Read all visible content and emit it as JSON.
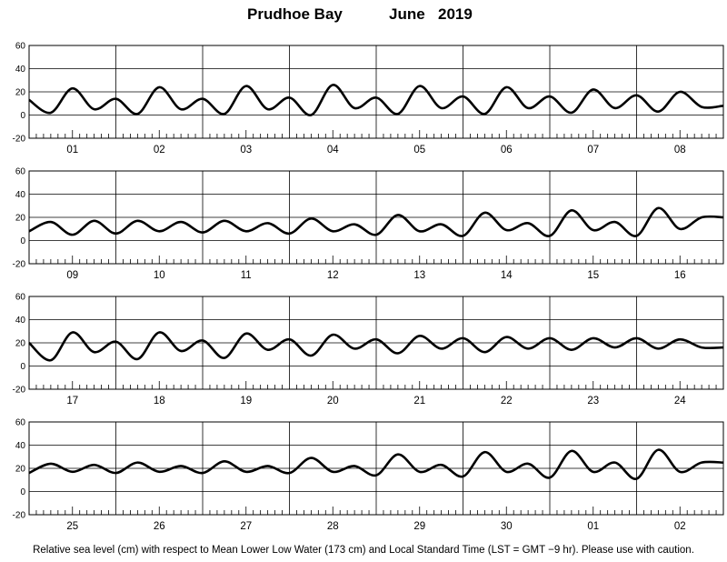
{
  "title": {
    "station": "Prudhoe Bay",
    "month": "June",
    "year": "2019"
  },
  "footer": "Relative sea level (cm) with respect to Mean Lower Low Water (173 cm) and Local Standard Time (LST = GMT −9 hr). Please use with caution.",
  "chart_data": {
    "type": "line",
    "title": "Prudhoe Bay June 2019",
    "ylabel": "",
    "xlabel": "",
    "ylim": [
      -20,
      60
    ],
    "yticks": [
      "-20",
      "0",
      "20",
      "40",
      "60"
    ],
    "grid": true,
    "line_color": "#000000",
    "panels": [
      {
        "days": [
          "01",
          "02",
          "03",
          "04",
          "05",
          "06",
          "07",
          "08"
        ],
        "series": [
          {
            "x_hours": [
              0,
              6,
              12,
              18,
              24,
              30,
              36,
              42,
              48,
              54,
              60,
              66,
              72,
              78,
              84,
              90,
              96,
              102,
              108,
              114,
              120,
              126,
              132,
              138,
              144,
              150,
              156,
              162,
              168,
              174,
              180,
              186,
              192
            ],
            "values": [
              13,
              2,
              23,
              5,
              14,
              1,
              24,
              5,
              14,
              1,
              25,
              5,
              15,
              0,
              26,
              6,
              15,
              1,
              25,
              6,
              16,
              1,
              24,
              6,
              16,
              2,
              22,
              6,
              17,
              3,
              20,
              7,
              8
            ]
          }
        ]
      },
      {
        "days": [
          "09",
          "10",
          "11",
          "12",
          "13",
          "14",
          "15",
          "16"
        ],
        "series": [
          {
            "x_hours": [
              0,
              6,
              12,
              18,
              24,
              30,
              36,
              42,
              48,
              54,
              60,
              66,
              72,
              78,
              84,
              90,
              96,
              102,
              108,
              114,
              120,
              126,
              132,
              138,
              144,
              150,
              156,
              162,
              168,
              174,
              180,
              186,
              192
            ],
            "values": [
              8,
              16,
              5,
              17,
              6,
              17,
              8,
              16,
              7,
              17,
              8,
              15,
              6,
              19,
              8,
              14,
              5,
              22,
              8,
              14,
              4,
              24,
              9,
              15,
              4,
              26,
              9,
              16,
              4,
              28,
              10,
              20,
              20
            ]
          }
        ]
      },
      {
        "days": [
          "17",
          "18",
          "19",
          "20",
          "21",
          "22",
          "23",
          "24"
        ],
        "series": [
          {
            "x_hours": [
              0,
              6,
              12,
              18,
              24,
              30,
              36,
              42,
              48,
              54,
              60,
              66,
              72,
              78,
              84,
              90,
              96,
              102,
              108,
              114,
              120,
              126,
              132,
              138,
              144,
              150,
              156,
              162,
              168,
              174,
              180,
              186,
              192
            ],
            "values": [
              20,
              5,
              29,
              12,
              21,
              6,
              29,
              13,
              22,
              7,
              28,
              14,
              23,
              9,
              27,
              15,
              23,
              11,
              26,
              15,
              24,
              12,
              25,
              15,
              24,
              14,
              24,
              16,
              24,
              15,
              23,
              16,
              16
            ]
          }
        ]
      },
      {
        "days": [
          "25",
          "26",
          "27",
          "28",
          "29",
          "30",
          "01",
          "02"
        ],
        "series": [
          {
            "x_hours": [
              0,
              6,
              12,
              18,
              24,
              30,
              36,
              42,
              48,
              54,
              60,
              66,
              72,
              78,
              84,
              90,
              96,
              102,
              108,
              114,
              120,
              126,
              132,
              138,
              144,
              150,
              156,
              162,
              168,
              174,
              180,
              186,
              192
            ],
            "values": [
              16,
              24,
              17,
              23,
              16,
              25,
              17,
              22,
              16,
              26,
              17,
              22,
              16,
              29,
              17,
              22,
              14,
              32,
              17,
              23,
              13,
              34,
              17,
              24,
              12,
              35,
              17,
              25,
              11,
              36,
              17,
              25,
              25
            ]
          }
        ]
      }
    ]
  }
}
